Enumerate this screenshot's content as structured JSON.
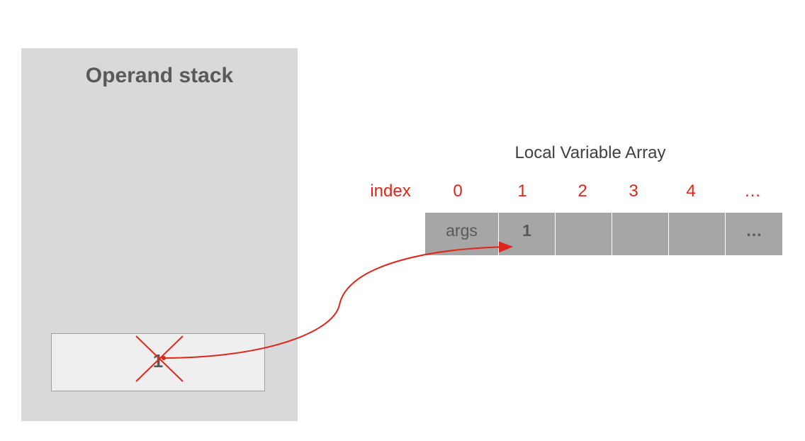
{
  "operand_stack": {
    "title": "Operand stack",
    "slot_value": "1"
  },
  "local_variable_array": {
    "title": "Local Variable Array",
    "index_label": "index",
    "indices": [
      "0",
      "1",
      "2",
      "3",
      "4",
      "…"
    ],
    "cells": [
      "args",
      "1",
      "",
      "",
      "",
      "…"
    ]
  },
  "colors": {
    "accent": "#e0261b",
    "panel": "#d9d9d9",
    "cell": "#a6a6a6",
    "text": "#595959"
  }
}
